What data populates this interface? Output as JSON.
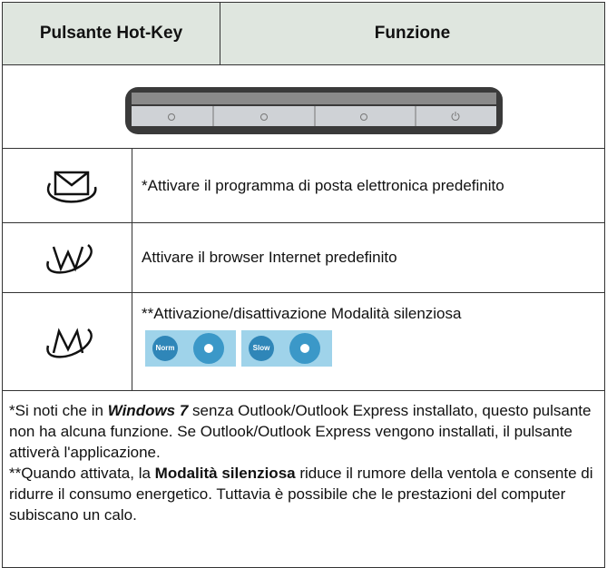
{
  "header": {
    "col1": "Pulsante Hot-Key",
    "col2": "Funzione"
  },
  "rows": [
    {
      "description": "*Attivare il programma di posta elettronica predefinito"
    },
    {
      "description": "Attivare il browser Internet predefinito"
    },
    {
      "description": "**Attivazione/disattivazione Modalità silenziosa",
      "icons": [
        "Norm",
        "Slow"
      ]
    }
  ],
  "note": {
    "p1": [
      "*Si noti che in ",
      "Windows 7",
      " senza Outlook/Outlook Express installato, questo pulsante non ha alcuna funzione. Se Outlook/Outlook Express vengono installati, il pulsante attiverà l'applicazione."
    ],
    "p2": [
      "**Quando attivata, la ",
      "Modalità silenziosa",
      " riduce il rumore della ventola e consente di ridurre il consumo energetico. Tuttavia è possibile che le prestazioni del computer subiscano un calo."
    ]
  }
}
